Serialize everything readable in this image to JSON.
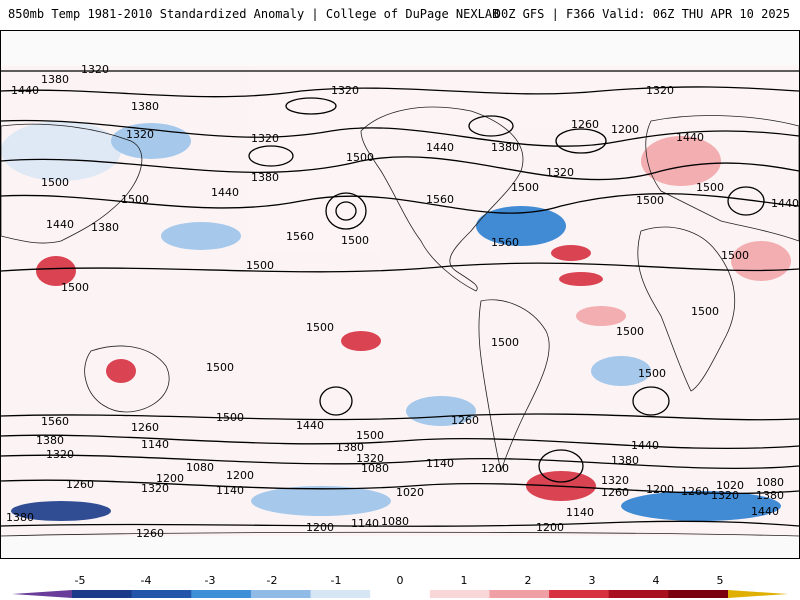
{
  "header": {
    "title_left": "850mb Temp 1981-2010 Standardized Anomaly | College of DuPage NEXLAB",
    "title_right": "00Z GFS | F366 Valid: 06Z THU APR 10 2025"
  },
  "map": {
    "contour_values": [
      "1320",
      "1380",
      "1440",
      "1500",
      "1560",
      "1260",
      "1200",
      "1140",
      "1080",
      "1020"
    ],
    "colors": {
      "strong_warm": "#8b0a1a",
      "warm": "#d73040",
      "mild_warm": "#f3a6aa",
      "weak_warm": "#fbe0e2",
      "weak_cold": "#dde8f5",
      "mild_cold": "#9cc3ea",
      "cold": "#2e7fd1",
      "strong_cold": "#1b3b8a",
      "land_line": "#222222",
      "contour": "#000000"
    }
  },
  "colorbar": {
    "ticks": [
      "-5",
      "-4",
      "-3",
      "-2",
      "-1",
      "0",
      "1",
      "2",
      "3",
      "4",
      "5"
    ],
    "segments": [
      "#6a3d9a",
      "#1b3b8a",
      "#2255aa",
      "#3d8fd8",
      "#8fbbe6",
      "#d6e6f5",
      "#ffffff",
      "#f9d6d8",
      "#f0a0a5",
      "#d73040",
      "#a81020",
      "#7a0010",
      "#e0b000"
    ]
  }
}
